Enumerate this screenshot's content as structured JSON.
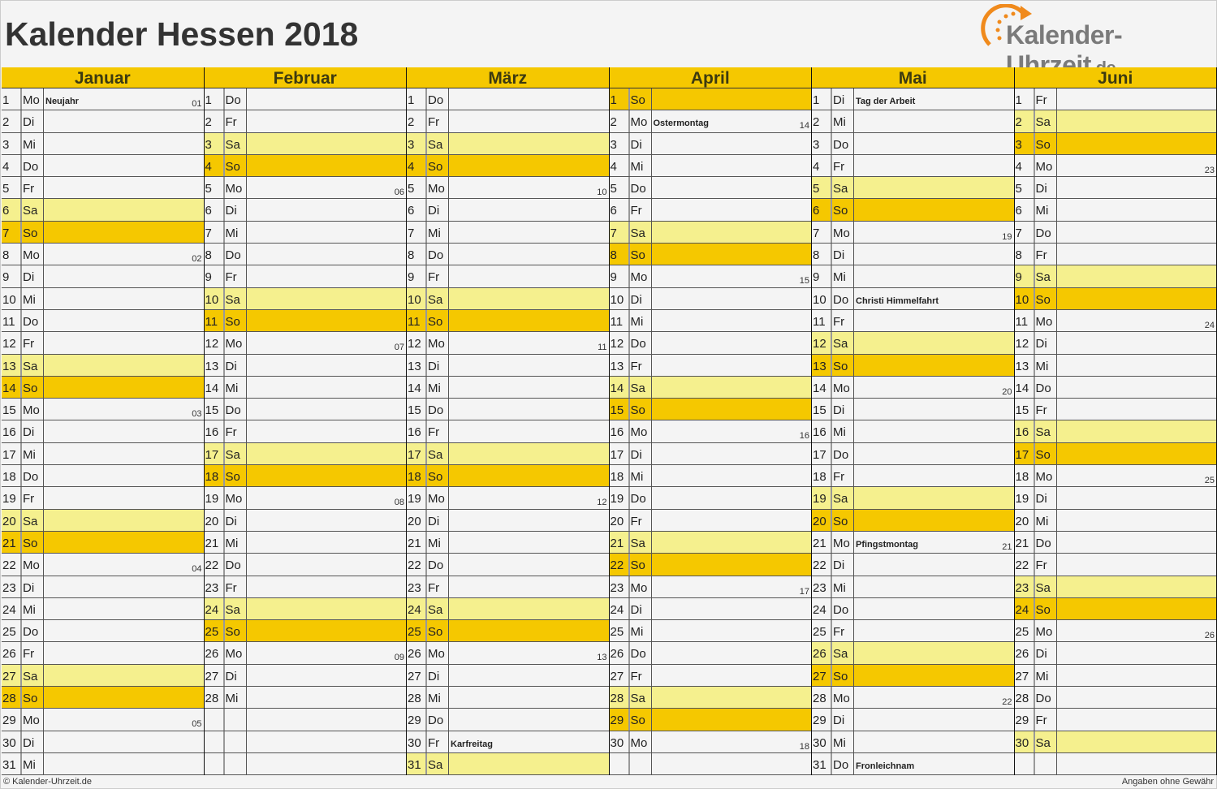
{
  "title": "Kalender Hessen 2018",
  "logo": {
    "main": "Kalender-Uhrzeit",
    "tld": ".de"
  },
  "footer": {
    "copyright": "© Kalender-Uhrzeit.de",
    "disclaimer": "Angaben ohne Gewähr"
  },
  "colors": {
    "header": "#f5c800",
    "saturday": "#f5f08e",
    "sunday": "#f5c800",
    "logo_orange": "#f08a1c"
  },
  "weekday_names": [
    "Mo",
    "Di",
    "Mi",
    "Do",
    "Fr",
    "Sa",
    "So"
  ],
  "months": [
    {
      "name": "Januar",
      "length": 31,
      "first_weekday": "Mo",
      "holidays": {
        "1": "Neujahr"
      },
      "weeks": {
        "1": "01",
        "8": "02",
        "15": "03",
        "22": "04",
        "29": "05"
      }
    },
    {
      "name": "Februar",
      "length": 28,
      "first_weekday": "Do",
      "holidays": {},
      "weeks": {
        "5": "06",
        "12": "07",
        "19": "08",
        "26": "09"
      }
    },
    {
      "name": "März",
      "length": 31,
      "first_weekday": "Do",
      "holidays": {
        "30": "Karfreitag"
      },
      "weeks": {
        "5": "10",
        "12": "11",
        "19": "12",
        "26": "13"
      }
    },
    {
      "name": "April",
      "length": 30,
      "first_weekday": "So",
      "holidays": {
        "2": "Ostermontag"
      },
      "weeks": {
        "2": "14",
        "9": "15",
        "16": "16",
        "23": "17",
        "30": "18"
      }
    },
    {
      "name": "Mai",
      "length": 31,
      "first_weekday": "Di",
      "holidays": {
        "1": "Tag der Arbeit",
        "10": "Christi Himmelfahrt",
        "21": "Pfingstmontag",
        "31": "Fronleichnam"
      },
      "weeks": {
        "7": "19",
        "14": "20",
        "21": "21",
        "28": "22"
      }
    },
    {
      "name": "Juni",
      "length": 30,
      "first_weekday": "Fr",
      "holidays": {},
      "weeks": {
        "4": "23",
        "11": "24",
        "18": "25",
        "25": "26"
      }
    }
  ]
}
